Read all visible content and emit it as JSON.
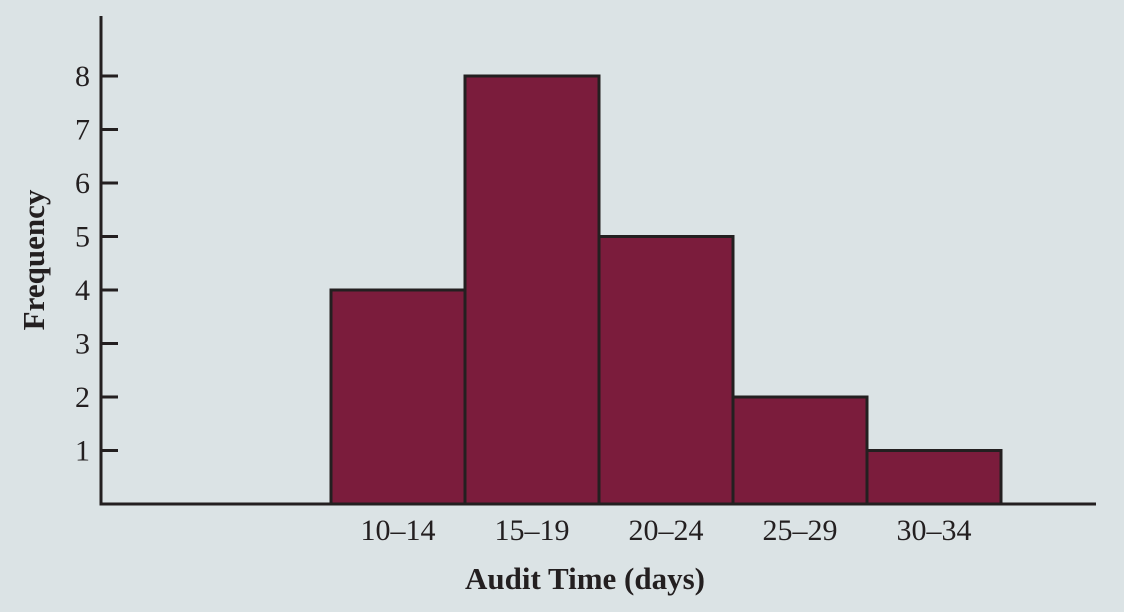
{
  "chart_data": {
    "type": "bar",
    "categories": [
      "10–14",
      "15–19",
      "20–24",
      "25–29",
      "30–34"
    ],
    "values": [
      4,
      8,
      5,
      2,
      1
    ],
    "xlabel": "Audit Time (days)",
    "ylabel": "Frequency",
    "yticks": [
      1,
      2,
      3,
      4,
      5,
      6,
      7,
      8
    ],
    "ylim": [
      0,
      9
    ],
    "empty_leading_bins": 1.5,
    "empty_trailing_bins": 0.7,
    "grid": false,
    "legend": "none",
    "colors": {
      "bar_fill": "#7b1c3c",
      "bar_stroke": "#231f20",
      "axis": "#231f20",
      "text": "#231f20",
      "background": "#dbe3e5"
    }
  }
}
